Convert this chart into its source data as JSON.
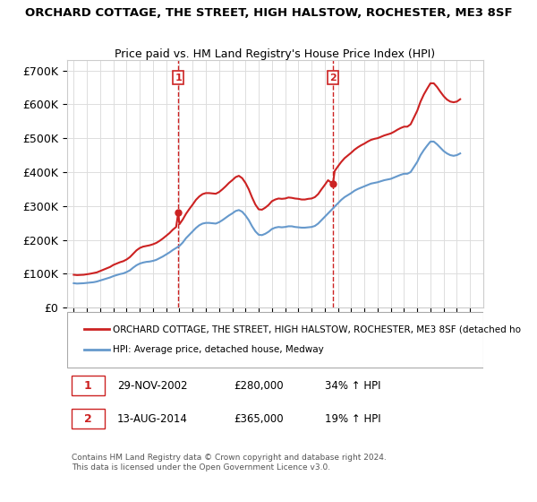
{
  "title": "ORCHARD COTTAGE, THE STREET, HIGH HALSTOW, ROCHESTER, ME3 8SF",
  "subtitle": "Price paid vs. HM Land Registry's House Price Index (HPI)",
  "ylabel_ticks": [
    "£0",
    "£100K",
    "£200K",
    "£300K",
    "£400K",
    "£500K",
    "£600K",
    "£700K"
  ],
  "ytick_vals": [
    0,
    100000,
    200000,
    300000,
    400000,
    500000,
    600000,
    700000
  ],
  "ylim": [
    0,
    730000
  ],
  "xlim_start": 1994.5,
  "xlim_end": 2026.0,
  "sale1_date": 2002.91,
  "sale1_price": 280000,
  "sale1_label": "1",
  "sale2_date": 2014.62,
  "sale2_price": 365000,
  "sale2_label": "2",
  "hpi_color": "#6699cc",
  "price_color": "#cc2222",
  "vline_color": "#cc2222",
  "background_color": "#ffffff",
  "grid_color": "#dddddd",
  "legend1_text": "ORCHARD COTTAGE, THE STREET, HIGH HALSTOW, ROCHESTER, ME3 8SF (detached ho",
  "legend2_text": "HPI: Average price, detached house, Medway",
  "note1": "1    29-NOV-2002    £280,000    34% ↑ HPI",
  "note2": "2    13-AUG-2014    £365,000    19% ↑ HPI",
  "footer": "Contains HM Land Registry data © Crown copyright and database right 2024.\nThis data is licensed under the Open Government Licence v3.0.",
  "hpi_data_x": [
    1995.0,
    1995.25,
    1995.5,
    1995.75,
    1996.0,
    1996.25,
    1996.5,
    1996.75,
    1997.0,
    1997.25,
    1997.5,
    1997.75,
    1998.0,
    1998.25,
    1998.5,
    1998.75,
    1999.0,
    1999.25,
    1999.5,
    1999.75,
    2000.0,
    2000.25,
    2000.5,
    2000.75,
    2001.0,
    2001.25,
    2001.5,
    2001.75,
    2002.0,
    2002.25,
    2002.5,
    2002.75,
    2003.0,
    2003.25,
    2003.5,
    2003.75,
    2004.0,
    2004.25,
    2004.5,
    2004.75,
    2005.0,
    2005.25,
    2005.5,
    2005.75,
    2006.0,
    2006.25,
    2006.5,
    2006.75,
    2007.0,
    2007.25,
    2007.5,
    2007.75,
    2008.0,
    2008.25,
    2008.5,
    2008.75,
    2009.0,
    2009.25,
    2009.5,
    2009.75,
    2010.0,
    2010.25,
    2010.5,
    2010.75,
    2011.0,
    2011.25,
    2011.5,
    2011.75,
    2012.0,
    2012.25,
    2012.5,
    2012.75,
    2013.0,
    2013.25,
    2013.5,
    2013.75,
    2014.0,
    2014.25,
    2014.5,
    2014.75,
    2015.0,
    2015.25,
    2015.5,
    2015.75,
    2016.0,
    2016.25,
    2016.5,
    2016.75,
    2017.0,
    2017.25,
    2017.5,
    2017.75,
    2018.0,
    2018.25,
    2018.5,
    2018.75,
    2019.0,
    2019.25,
    2019.5,
    2019.75,
    2020.0,
    2020.25,
    2020.5,
    2020.75,
    2021.0,
    2021.25,
    2021.5,
    2021.75,
    2022.0,
    2022.25,
    2022.5,
    2022.75,
    2023.0,
    2023.25,
    2023.5,
    2023.75,
    2024.0,
    2024.25
  ],
  "hpi_data_y": [
    72000,
    71000,
    71500,
    72000,
    73000,
    74000,
    75000,
    77000,
    80000,
    83000,
    86000,
    89000,
    93000,
    96000,
    99000,
    101000,
    105000,
    110000,
    118000,
    125000,
    130000,
    133000,
    135000,
    136000,
    138000,
    141000,
    146000,
    151000,
    157000,
    163000,
    170000,
    176000,
    182000,
    192000,
    205000,
    215000,
    225000,
    235000,
    243000,
    248000,
    250000,
    250000,
    249000,
    248000,
    252000,
    258000,
    265000,
    272000,
    278000,
    285000,
    288000,
    283000,
    272000,
    258000,
    240000,
    225000,
    215000,
    214000,
    218000,
    224000,
    232000,
    236000,
    238000,
    237000,
    238000,
    240000,
    240000,
    238000,
    237000,
    236000,
    236000,
    237000,
    238000,
    241000,
    248000,
    258000,
    268000,
    278000,
    288000,
    298000,
    308000,
    318000,
    326000,
    332000,
    338000,
    345000,
    350000,
    354000,
    358000,
    362000,
    366000,
    368000,
    370000,
    373000,
    376000,
    378000,
    380000,
    384000,
    388000,
    392000,
    395000,
    395000,
    400000,
    415000,
    430000,
    450000,
    465000,
    478000,
    490000,
    490000,
    482000,
    472000,
    462000,
    455000,
    450000,
    448000,
    450000,
    455000
  ],
  "price_data_x": [
    1995.0,
    1995.25,
    1995.5,
    1995.75,
    1996.0,
    1996.25,
    1996.5,
    1996.75,
    1997.0,
    1997.25,
    1997.5,
    1997.75,
    1998.0,
    1998.25,
    1998.5,
    1998.75,
    1999.0,
    1999.25,
    1999.5,
    1999.75,
    2000.0,
    2000.25,
    2000.5,
    2000.75,
    2001.0,
    2001.25,
    2001.5,
    2001.75,
    2002.0,
    2002.25,
    2002.5,
    2002.75,
    2002.91,
    2003.0,
    2003.25,
    2003.5,
    2003.75,
    2004.0,
    2004.25,
    2004.5,
    2004.75,
    2005.0,
    2005.25,
    2005.5,
    2005.75,
    2006.0,
    2006.25,
    2006.5,
    2006.75,
    2007.0,
    2007.25,
    2007.5,
    2007.75,
    2008.0,
    2008.25,
    2008.5,
    2008.75,
    2009.0,
    2009.25,
    2009.5,
    2009.75,
    2010.0,
    2010.25,
    2010.5,
    2010.75,
    2011.0,
    2011.25,
    2011.5,
    2011.75,
    2012.0,
    2012.25,
    2012.5,
    2012.75,
    2013.0,
    2013.25,
    2013.5,
    2013.75,
    2014.0,
    2014.25,
    2014.62,
    2014.75,
    2015.0,
    2015.25,
    2015.5,
    2015.75,
    2016.0,
    2016.25,
    2016.5,
    2016.75,
    2017.0,
    2017.25,
    2017.5,
    2017.75,
    2018.0,
    2018.25,
    2018.5,
    2018.75,
    2019.0,
    2019.25,
    2019.5,
    2019.75,
    2020.0,
    2020.25,
    2020.5,
    2020.75,
    2021.0,
    2021.25,
    2021.5,
    2021.75,
    2022.0,
    2022.25,
    2022.5,
    2022.75,
    2023.0,
    2023.25,
    2023.5,
    2023.75,
    2024.0,
    2024.25
  ],
  "price_data_y": [
    97000,
    96000,
    96500,
    97000,
    98500,
    100000,
    102000,
    104000,
    108000,
    112000,
    116000,
    120000,
    126000,
    130000,
    134000,
    137000,
    142000,
    149000,
    159000,
    169000,
    176000,
    180000,
    182000,
    184000,
    187000,
    191000,
    197000,
    204000,
    212000,
    220000,
    230000,
    238000,
    280000,
    246000,
    260000,
    277000,
    291000,
    304000,
    318000,
    328000,
    335000,
    338000,
    338000,
    337000,
    336000,
    341000,
    349000,
    358000,
    368000,
    376000,
    385000,
    389000,
    382000,
    368000,
    349000,
    325000,
    304000,
    290000,
    289000,
    295000,
    303000,
    314000,
    319000,
    322000,
    321000,
    322000,
    325000,
    324000,
    322000,
    321000,
    319000,
    319000,
    321000,
    322000,
    326000,
    335000,
    349000,
    362000,
    376000,
    365000,
    403000,
    417000,
    430000,
    441000,
    449000,
    457000,
    466000,
    473000,
    479000,
    484000,
    490000,
    495000,
    498000,
    500000,
    504000,
    508000,
    511000,
    514000,
    519000,
    525000,
    530000,
    534000,
    534000,
    541000,
    561000,
    581000,
    608000,
    629000,
    646000,
    662000,
    662000,
    651000,
    637000,
    624000,
    614000,
    608000,
    606000,
    608000,
    615000
  ]
}
